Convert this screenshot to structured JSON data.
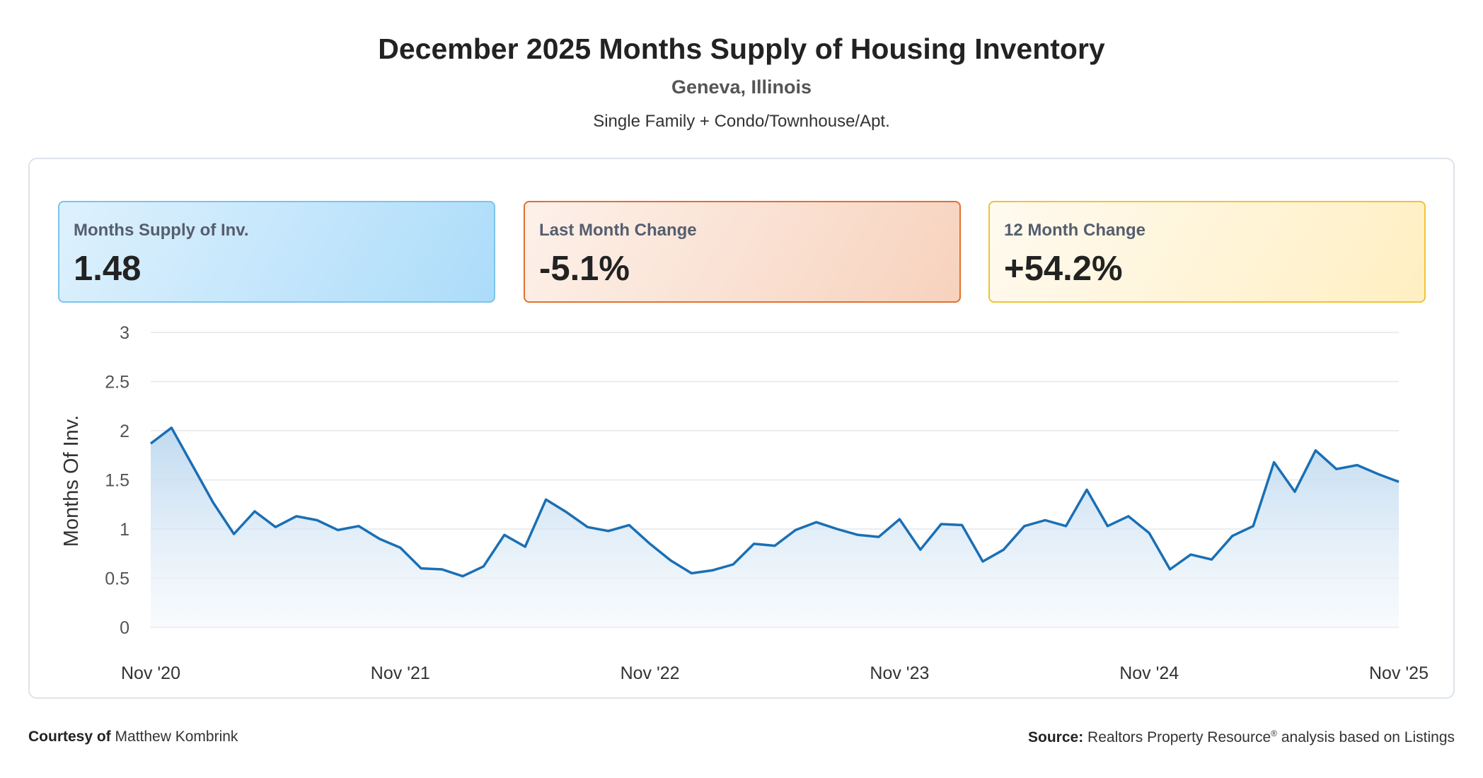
{
  "header": {
    "title": "December 2025 Months Supply of Housing Inventory",
    "location": "Geneva, Illinois",
    "segment": "Single Family + Condo/Townhouse/Apt."
  },
  "cards": [
    {
      "label": "Months Supply of Inv.",
      "value": "1.48",
      "accent": "#7cc4ec"
    },
    {
      "label": "Last Month Change",
      "value": "-5.1%",
      "accent": "#e0712f"
    },
    {
      "label": "12 Month Change",
      "value": "+54.2%",
      "accent": "#f1c332"
    }
  ],
  "chart_data": {
    "type": "area",
    "ylabel": "Months Of Inv.",
    "xlabel": "",
    "ylim": [
      0,
      3
    ],
    "yticks": [
      0,
      0.5,
      1,
      1.5,
      2,
      2.5,
      3
    ],
    "ytick_labels": [
      "0",
      "0.5",
      "1",
      "1.5",
      "2",
      "2.5",
      "3"
    ],
    "x_tick_labels": [
      "Nov '20",
      "Nov '21",
      "Nov '22",
      "Nov '23",
      "Nov '24",
      "Nov '25"
    ],
    "x_start": "2020-11",
    "x_end": "2025-11",
    "grid": true,
    "line_color": "#1a6fb5",
    "values": [
      1.87,
      2.03,
      1.65,
      1.27,
      0.95,
      1.18,
      1.02,
      1.13,
      1.09,
      0.99,
      1.03,
      0.9,
      0.81,
      0.6,
      0.59,
      0.52,
      0.62,
      0.94,
      0.82,
      1.3,
      1.17,
      1.02,
      0.98,
      1.04,
      0.85,
      0.68,
      0.55,
      0.58,
      0.64,
      0.85,
      0.83,
      0.99,
      1.07,
      1.0,
      0.94,
      0.92,
      1.1,
      0.79,
      1.05,
      1.04,
      0.67,
      0.79,
      1.03,
      1.09,
      1.03,
      1.4,
      1.03,
      1.13,
      0.96,
      0.59,
      0.74,
      0.69,
      0.93,
      1.03,
      1.68,
      1.38,
      1.8,
      1.61,
      1.65,
      1.56,
      1.48
    ]
  },
  "footer": {
    "courtesy_label": "Courtesy of",
    "courtesy_name": "Matthew Kombrink",
    "source_label": "Source:",
    "source_text": "Realtors Property Resource",
    "source_mark": "®",
    "source_suffix": "analysis based on Listings"
  }
}
